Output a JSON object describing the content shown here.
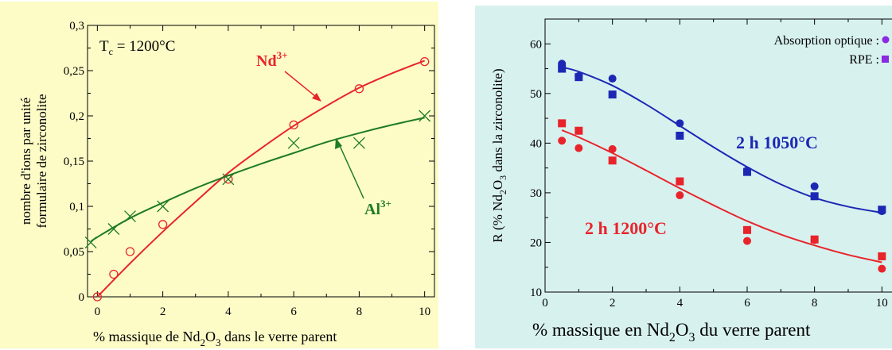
{
  "chart_data": [
    {
      "type": "scatter",
      "annotation_tc": "T",
      "annotation_tc_sub": "c",
      "annotation_tc_rest": " = 1200°C",
      "ylabel_line1": "nombre d'ions par unité",
      "ylabel_line2": "formulaire de zirconolite",
      "xlabel_pre": "%  massique de Nd",
      "xlabel_sub1": "2",
      "xlabel_mid": "O",
      "xlabel_sub2": "3",
      "xlabel_post": " dans le verre parent",
      "xlim": [
        -0.3,
        10.3
      ],
      "ylim": [
        0,
        0.3
      ],
      "x_ticks": [
        "0",
        "2",
        "4",
        "6",
        "8",
        "10"
      ],
      "y_ticks": [
        "0",
        "0,05",
        "0,1",
        "0,15",
        "0,2",
        "0,25",
        "0,3"
      ],
      "series": [
        {
          "name": "Nd",
          "name_sup": "3+",
          "color": "#e8242a",
          "marker": "circle",
          "points": [
            [
              0,
              0
            ],
            [
              0.5,
              0.025
            ],
            [
              1,
              0.05
            ],
            [
              2,
              0.08
            ],
            [
              4,
              0.13
            ],
            [
              6,
              0.19
            ],
            [
              8,
              0.23
            ],
            [
              10,
              0.26
            ]
          ],
          "fit": [
            [
              0,
              0
            ],
            [
              1,
              0.037
            ],
            [
              2,
              0.072
            ],
            [
              3,
              0.105
            ],
            [
              4,
              0.137
            ],
            [
              5,
              0.164
            ],
            [
              6,
              0.189
            ],
            [
              7,
              0.211
            ],
            [
              8,
              0.231
            ],
            [
              9,
              0.247
            ],
            [
              10,
              0.261
            ]
          ]
        },
        {
          "name": "Al",
          "name_sup": "3+",
          "color": "#1e7b26",
          "marker": "x",
          "points": [
            [
              -0.2,
              0.06
            ],
            [
              0.5,
              0.075
            ],
            [
              1,
              0.089
            ],
            [
              2,
              0.1
            ],
            [
              4,
              0.13
            ],
            [
              6,
              0.17
            ],
            [
              8,
              0.17
            ],
            [
              10,
              0.2
            ]
          ],
          "fit": [
            [
              -0.2,
              0.061
            ],
            [
              0,
              0.066
            ],
            [
              1,
              0.087
            ],
            [
              2,
              0.104
            ],
            [
              3,
              0.12
            ],
            [
              4,
              0.134
            ],
            [
              5,
              0.147
            ],
            [
              6,
              0.159
            ],
            [
              7,
              0.171
            ],
            [
              8,
              0.181
            ],
            [
              9,
              0.19
            ],
            [
              10,
              0.198
            ]
          ]
        }
      ]
    },
    {
      "type": "scatter",
      "ylabel_pre": "R (% Nd",
      "ylabel_sub1": "2",
      "ylabel_mid": "O",
      "ylabel_sub2": "3",
      "ylabel_post": " dans la zirconolite)",
      "xlabel_pre": "% massique en Nd",
      "xlabel_sub1": "2",
      "xlabel_mid": "O",
      "xlabel_sub2": "3",
      "xlabel_post": " du verre parent",
      "xlim": [
        0,
        10.3
      ],
      "ylim": [
        10,
        65
      ],
      "x_ticks": [
        "0",
        "2",
        "4",
        "6",
        "8",
        "10"
      ],
      "y_ticks": [
        "10",
        "20",
        "30",
        "40",
        "50",
        "60"
      ],
      "legend": [
        {
          "label": "Absorption optique :",
          "marker": "circle",
          "color": "#8a2be2"
        },
        {
          "label": "RPE :",
          "marker": "square",
          "color": "#8a2be2"
        }
      ],
      "series": [
        {
          "name": "2 h 1050°C",
          "color": "#1c28b4",
          "circles": [
            [
              0.5,
              56
            ],
            [
              1,
              53.5
            ],
            [
              2,
              53
            ],
            [
              4,
              44
            ],
            [
              6,
              34.5
            ],
            [
              8,
              31.3
            ],
            [
              10,
              26.3
            ]
          ],
          "squares": [
            [
              0.5,
              55
            ],
            [
              1,
              53.3
            ],
            [
              2,
              49.8
            ],
            [
              4,
              41.5
            ],
            [
              6,
              34.2
            ],
            [
              8,
              29.3
            ],
            [
              10,
              26.6
            ]
          ],
          "fit": [
            [
              0.5,
              55.3
            ],
            [
              1,
              54.4
            ],
            [
              2,
              51.6
            ],
            [
              3,
              47.8
            ],
            [
              4,
              43.5
            ],
            [
              5,
              39.2
            ],
            [
              6,
              35.2
            ],
            [
              7,
              31.7
            ],
            [
              8,
              29
            ],
            [
              9,
              27.2
            ],
            [
              10,
              26
            ]
          ]
        },
        {
          "name": "2 h 1200°C",
          "color": "#e8242a",
          "circles": [
            [
              0.5,
              40.5
            ],
            [
              1,
              39
            ],
            [
              2,
              38.8
            ],
            [
              4,
              29.5
            ],
            [
              6,
              20.3
            ],
            [
              8,
              20.5
            ],
            [
              10,
              14.7
            ]
          ],
          "squares": [
            [
              0.5,
              44
            ],
            [
              1,
              42.5
            ],
            [
              2,
              36.5
            ],
            [
              4,
              32.3
            ],
            [
              6,
              22.5
            ],
            [
              8,
              20.6
            ],
            [
              10,
              17.2
            ]
          ],
          "fit": [
            [
              0.5,
              42.6
            ],
            [
              1,
              41.2
            ],
            [
              2,
              38
            ],
            [
              3,
              34.5
            ],
            [
              4,
              30.9
            ],
            [
              5,
              27.5
            ],
            [
              6,
              24.3
            ],
            [
              7,
              21.6
            ],
            [
              8,
              19.4
            ],
            [
              9,
              17.5
            ],
            [
              10,
              16
            ]
          ]
        }
      ]
    }
  ]
}
